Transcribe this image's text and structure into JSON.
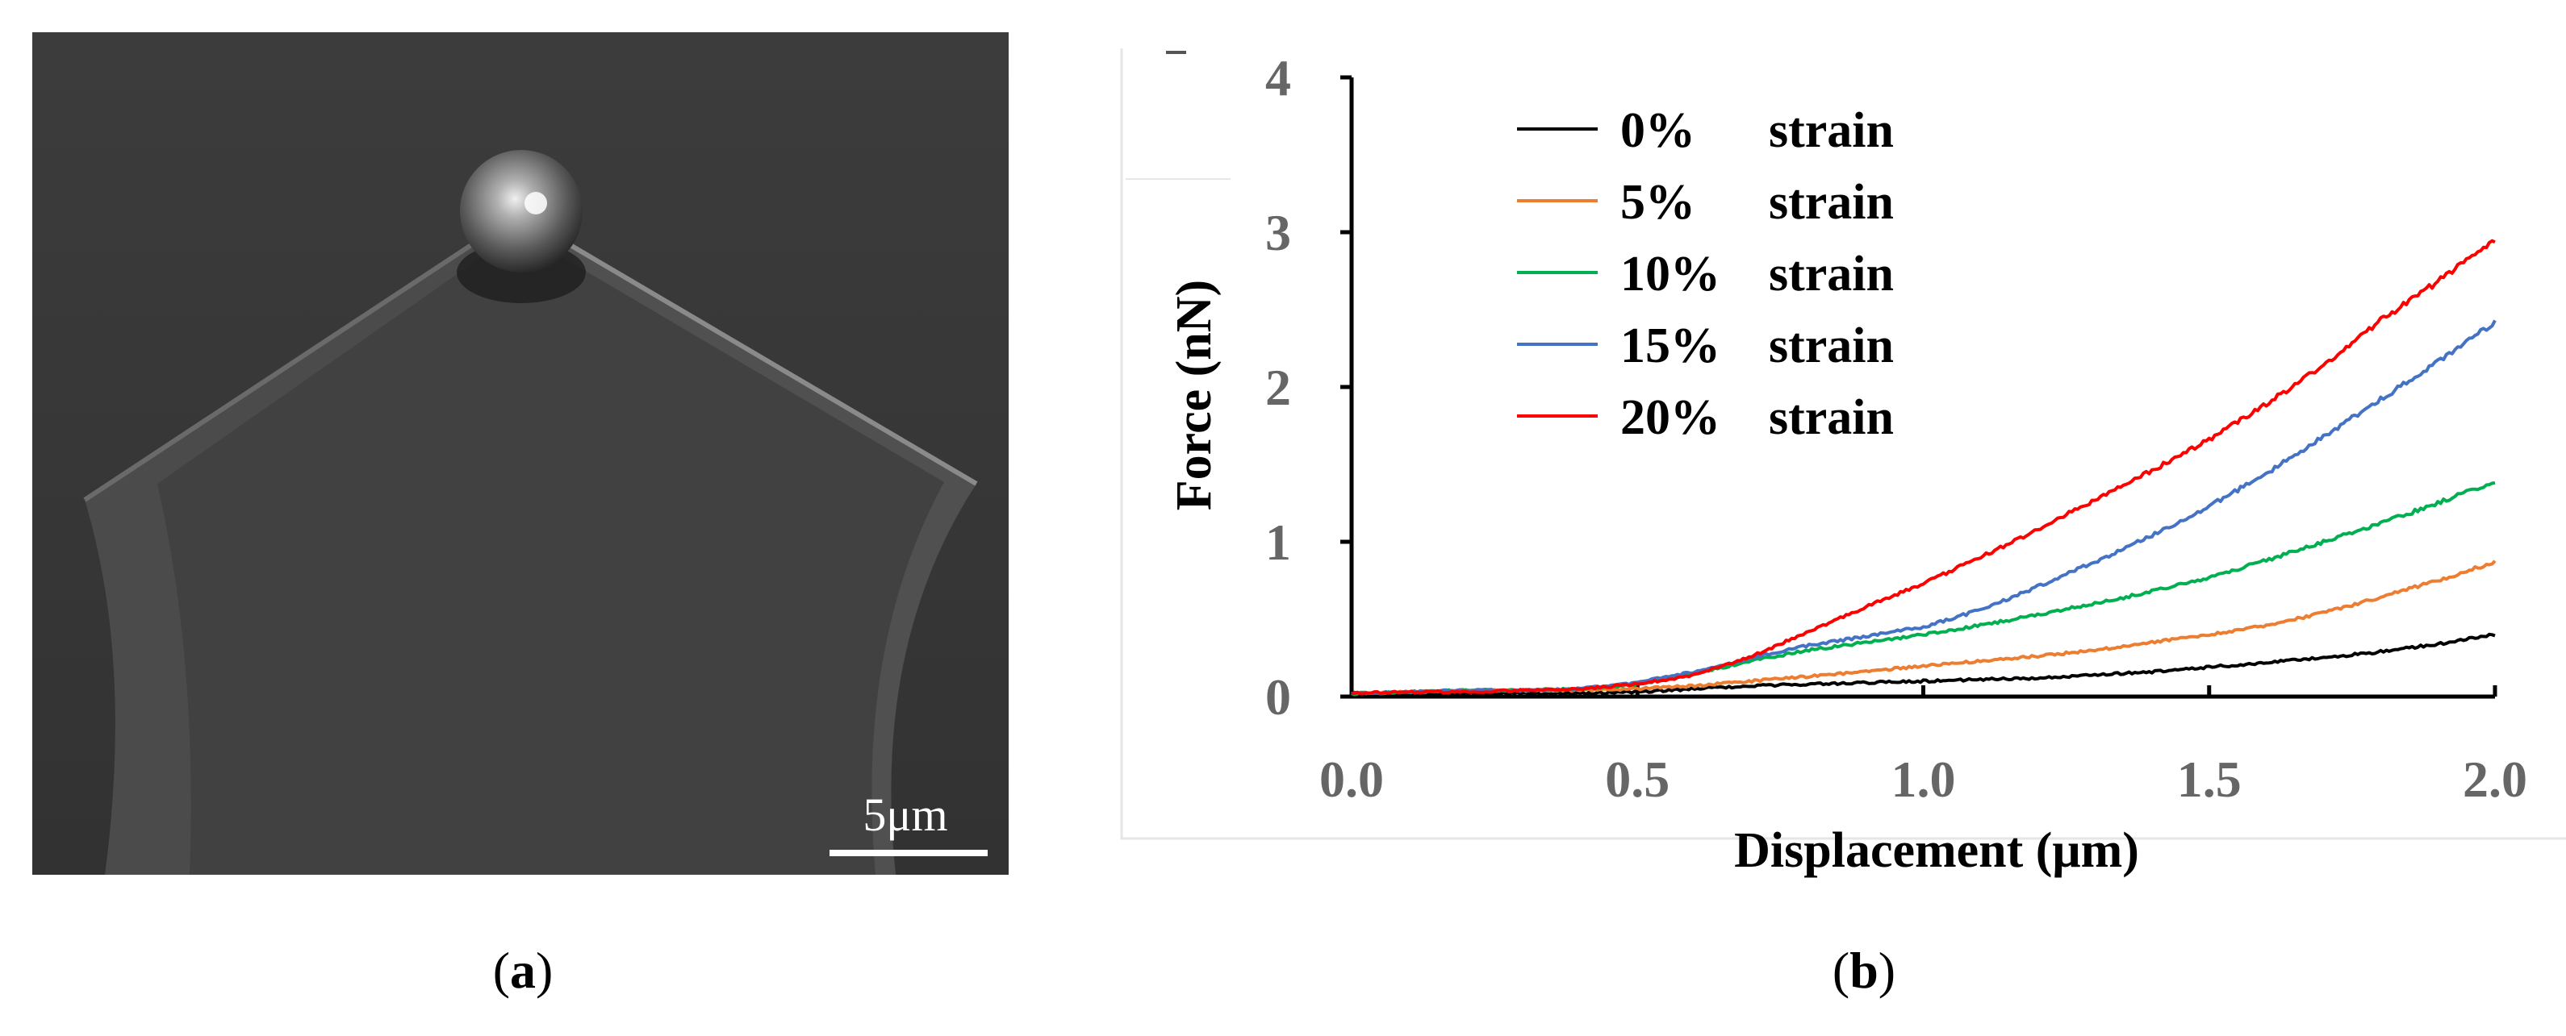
{
  "panels": {
    "a": {
      "label_open": "(",
      "label_letter": "a",
      "label_close": ")"
    },
    "b": {
      "label_open": "(",
      "label_letter": "b",
      "label_close": ")"
    }
  },
  "sem_image": {
    "scale_bar_text": "5μm",
    "background_color": "#3a3a3a"
  },
  "chart_data": {
    "type": "line",
    "title": "",
    "xlabel": "Displacement (μm)",
    "ylabel": "Force (nN)",
    "xlim": [
      0.0,
      2.0
    ],
    "ylim": [
      0,
      4
    ],
    "x_ticks": [
      0.0,
      0.5,
      1.0,
      1.5,
      2.0
    ],
    "x_tick_labels": [
      "0.0",
      "0.5",
      "1.0",
      "1.5",
      "2.0"
    ],
    "y_ticks": [
      0,
      1,
      2,
      3,
      4
    ],
    "y_tick_labels": [
      "0",
      "1",
      "2",
      "3",
      "4"
    ],
    "grid": false,
    "legend_position": "top-left",
    "x": [
      0.0,
      0.1,
      0.2,
      0.3,
      0.4,
      0.5,
      0.6,
      0.7,
      0.8,
      0.9,
      1.0,
      1.1,
      1.2,
      1.3,
      1.4,
      1.5,
      1.6,
      1.7,
      1.8,
      1.9,
      2.0
    ],
    "series": [
      {
        "name": "0%",
        "suffix": "strain",
        "color": "#000000",
        "values": [
          0.02,
          0.02,
          0.02,
          0.02,
          0.02,
          0.03,
          0.05,
          0.07,
          0.08,
          0.09,
          0.1,
          0.11,
          0.12,
          0.14,
          0.16,
          0.19,
          0.22,
          0.25,
          0.29,
          0.34,
          0.4
        ]
      },
      {
        "name": "5%",
        "suffix": "strain",
        "color": "#ED7D31",
        "values": [
          0.02,
          0.03,
          0.04,
          0.04,
          0.04,
          0.05,
          0.07,
          0.1,
          0.13,
          0.16,
          0.2,
          0.23,
          0.26,
          0.3,
          0.35,
          0.4,
          0.46,
          0.54,
          0.64,
          0.75,
          0.87
        ]
      },
      {
        "name": "10%",
        "suffix": "strain",
        "color": "#00B050",
        "values": [
          0.02,
          0.03,
          0.04,
          0.04,
          0.05,
          0.08,
          0.15,
          0.23,
          0.3,
          0.35,
          0.4,
          0.46,
          0.53,
          0.6,
          0.68,
          0.77,
          0.88,
          1.0,
          1.12,
          1.25,
          1.39
        ]
      },
      {
        "name": "15%",
        "suffix": "strain",
        "color": "#4472C4",
        "values": [
          0.02,
          0.03,
          0.04,
          0.04,
          0.05,
          0.09,
          0.16,
          0.25,
          0.33,
          0.39,
          0.45,
          0.56,
          0.71,
          0.87,
          1.04,
          1.23,
          1.44,
          1.68,
          1.92,
          2.16,
          2.42
        ]
      },
      {
        "name": "20%",
        "suffix": "strain",
        "color": "#FF0000",
        "values": [
          0.02,
          0.03,
          0.03,
          0.04,
          0.05,
          0.08,
          0.14,
          0.26,
          0.42,
          0.58,
          0.73,
          0.9,
          1.08,
          1.27,
          1.46,
          1.66,
          1.89,
          2.14,
          2.43,
          2.68,
          2.95
        ]
      }
    ]
  }
}
